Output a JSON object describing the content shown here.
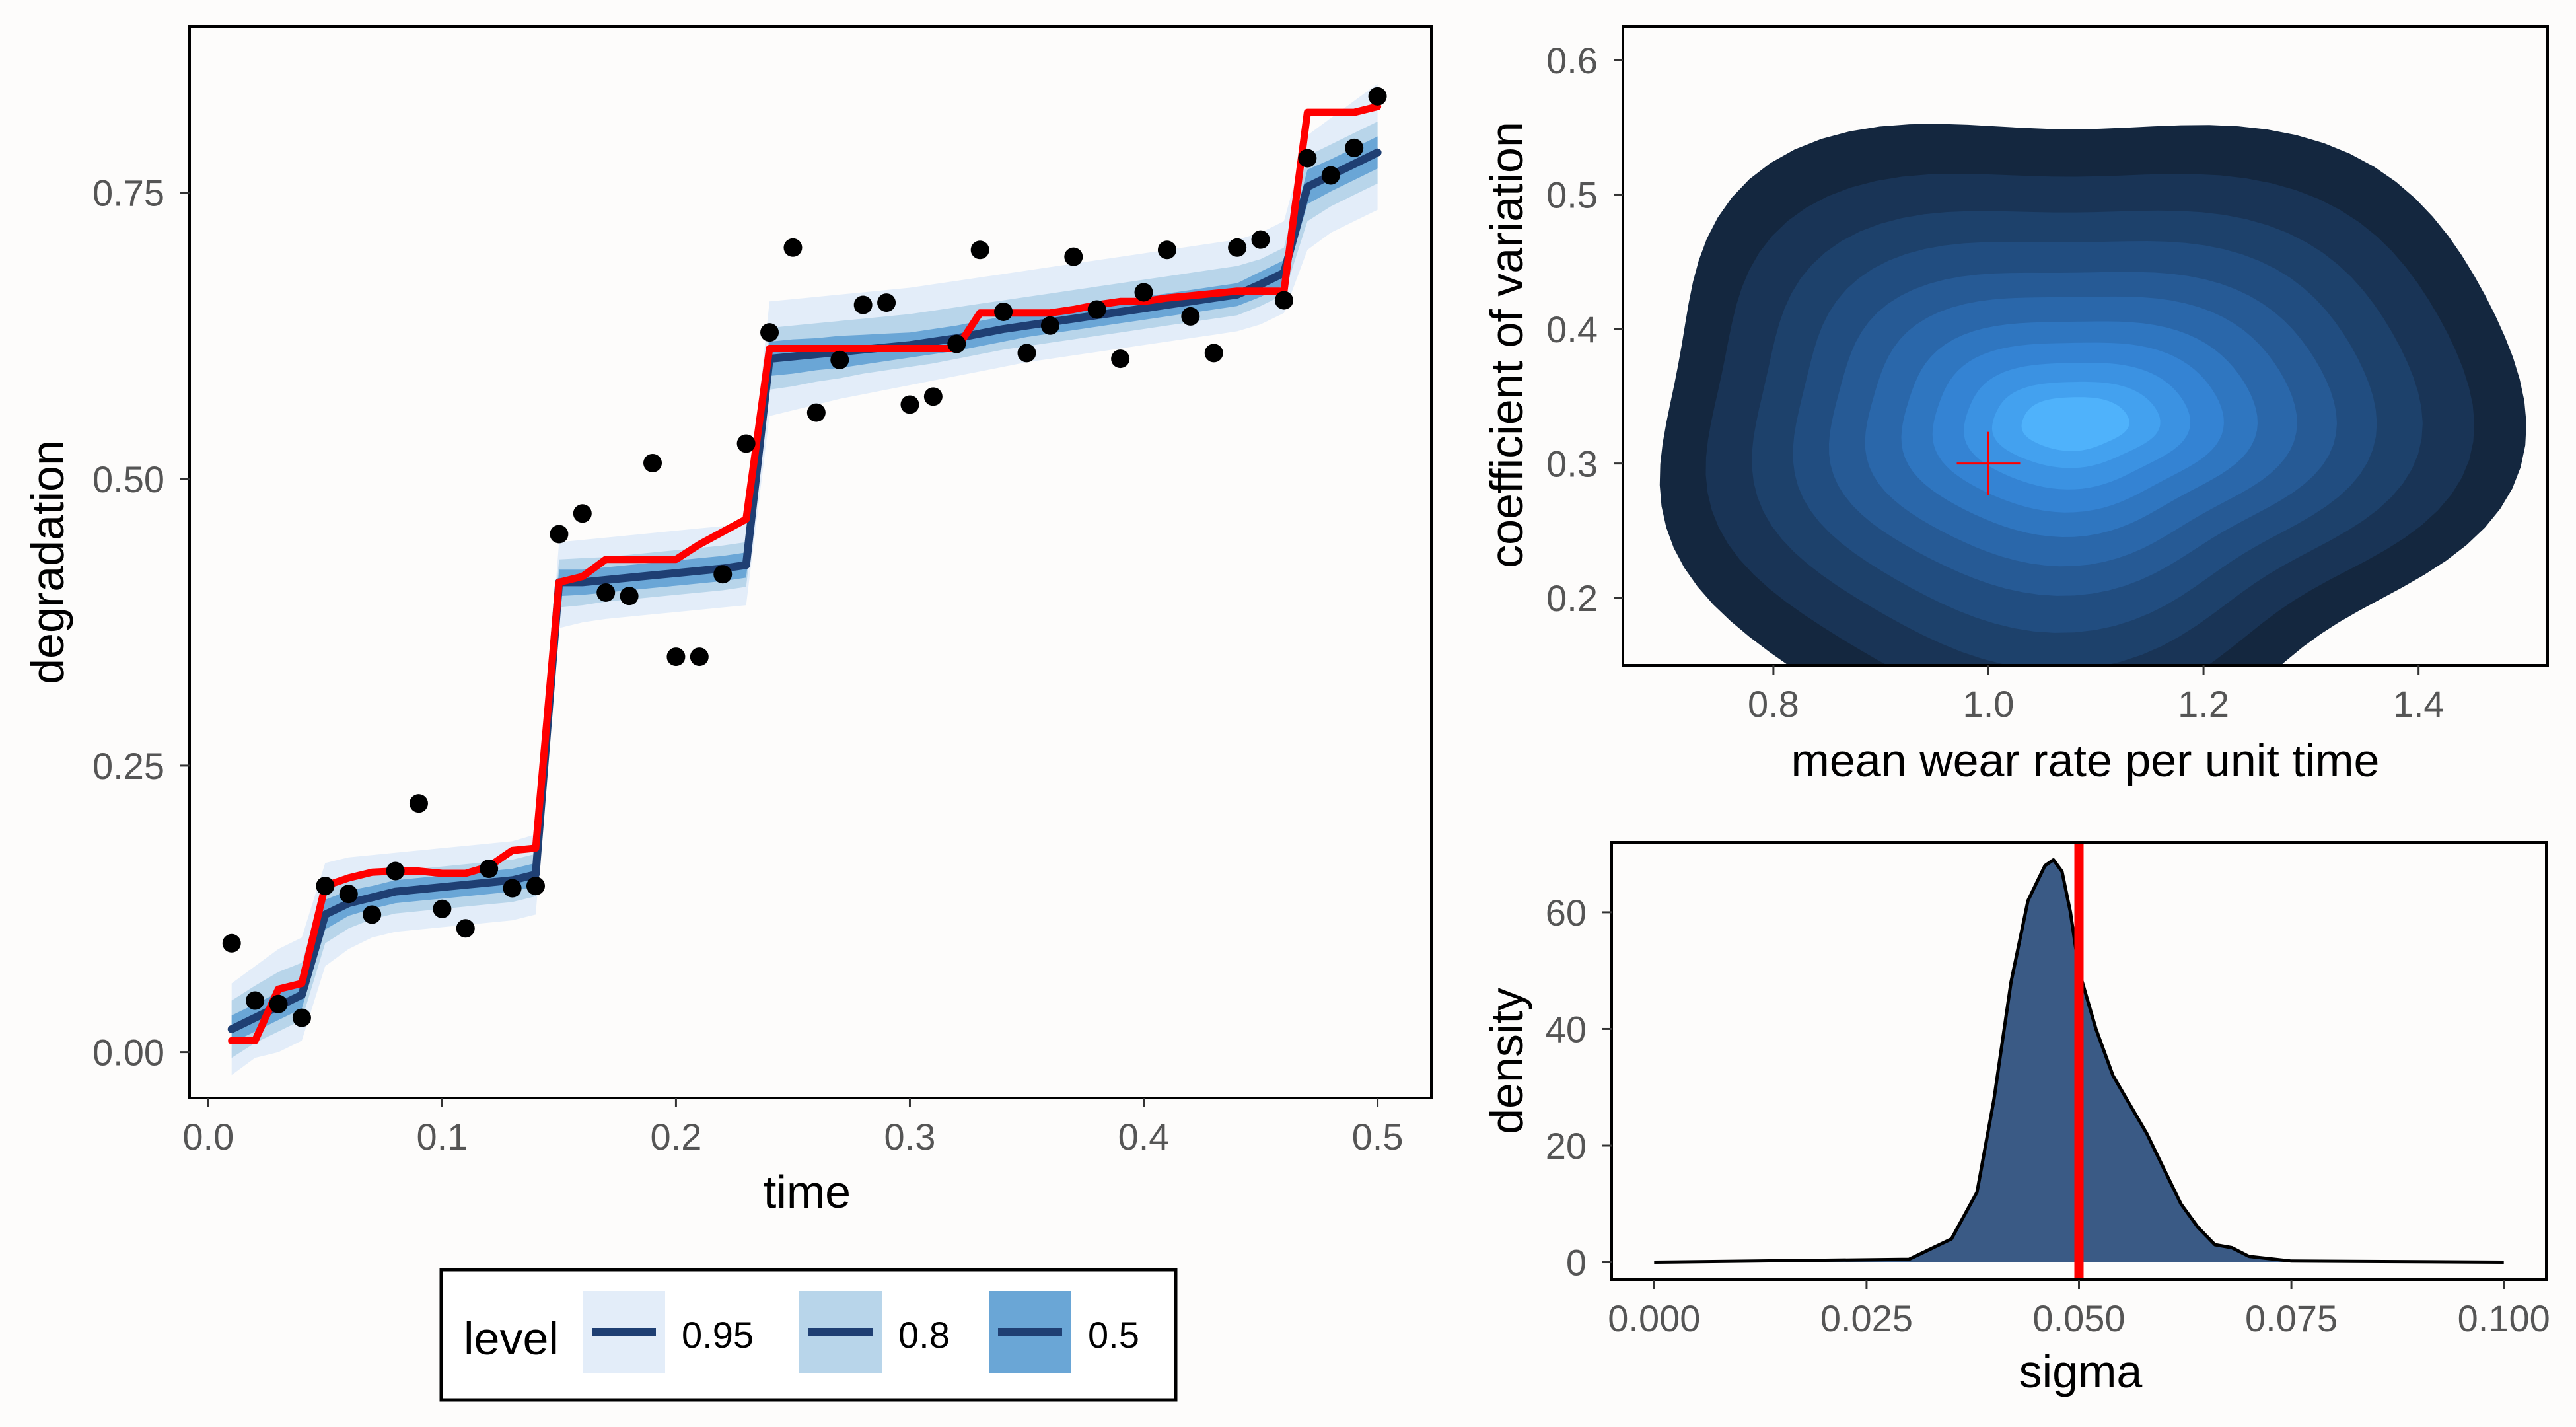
{
  "colors": {
    "background": "#fdfcfb",
    "band_95": "#e3edf9",
    "band_80": "#b8d5ea",
    "band_50": "#6aa6d6",
    "median_line": "#1f3f73",
    "observed_line": "#ff0000",
    "points": "#000000",
    "density_fill": "#3a5a85",
    "true_value_line": "#ff0000",
    "contour_levels": [
      "#14273f",
      "#193456",
      "#1d416b",
      "#214d80",
      "#265a95",
      "#2a67aa",
      "#2f76c0",
      "#3483d3",
      "#3b92e2",
      "#43a1ef",
      "#4fb2fb"
    ]
  },
  "legend": {
    "title": "level",
    "items": [
      {
        "label": "0.95",
        "fill": "#e3edf9"
      },
      {
        "label": "0.8",
        "fill": "#b8d5ea"
      },
      {
        "label": "0.5",
        "fill": "#6aa6d6"
      }
    ]
  },
  "chart_data": [
    {
      "id": "degradation-path",
      "type": "line",
      "title": "",
      "xlabel": "time",
      "ylabel": "degradation",
      "xlim": [
        -0.008,
        0.523
      ],
      "ylim": [
        -0.04,
        0.895
      ],
      "x_ticks": [
        0.0,
        0.1,
        0.2,
        0.3,
        0.4,
        0.5
      ],
      "x_tick_labels": [
        "0.0",
        "0.1",
        "0.2",
        "0.3",
        "0.4",
        "0.5"
      ],
      "y_ticks": [
        0.0,
        0.25,
        0.5,
        0.75
      ],
      "y_tick_labels": [
        "0.00",
        "0.25",
        "0.50",
        "0.75"
      ],
      "grid": false,
      "observed_points": {
        "x": [
          0.01,
          0.02,
          0.03,
          0.04,
          0.05,
          0.06,
          0.07,
          0.08,
          0.09,
          0.1,
          0.11,
          0.12,
          0.13,
          0.14,
          0.15,
          0.16,
          0.17,
          0.18,
          0.19,
          0.2,
          0.21,
          0.22,
          0.23,
          0.24,
          0.25,
          0.26,
          0.27,
          0.28,
          0.29,
          0.3,
          0.31,
          0.32,
          0.33,
          0.34,
          0.35,
          0.36,
          0.37,
          0.38,
          0.39,
          0.4,
          0.41,
          0.42,
          0.43,
          0.44,
          0.45,
          0.46,
          0.47,
          0.48,
          0.49,
          0.5
        ],
        "y": [
          0.095,
          0.045,
          0.042,
          0.03,
          0.145,
          0.138,
          0.12,
          0.158,
          0.217,
          0.125,
          0.108,
          0.16,
          0.143,
          0.145,
          0.452,
          0.47,
          0.401,
          0.398,
          0.514,
          0.345,
          0.345,
          0.417,
          0.531,
          0.628,
          0.702,
          0.558,
          0.604,
          0.652,
          0.654,
          0.565,
          0.572,
          0.618,
          0.7,
          0.646,
          0.61,
          0.634,
          0.694,
          0.648,
          0.605,
          0.663,
          0.7,
          0.642,
          0.61,
          0.702,
          0.709,
          0.656,
          0.78,
          0.765,
          0.789,
          0.834
        ]
      },
      "observed_path": {
        "name": "",
        "x": [
          0.01,
          0.02,
          0.03,
          0.04,
          0.05,
          0.06,
          0.07,
          0.08,
          0.09,
          0.1,
          0.11,
          0.12,
          0.13,
          0.14,
          0.15,
          0.16,
          0.17,
          0.18,
          0.19,
          0.2,
          0.21,
          0.22,
          0.23,
          0.24,
          0.25,
          0.26,
          0.27,
          0.28,
          0.29,
          0.3,
          0.31,
          0.32,
          0.33,
          0.34,
          0.35,
          0.36,
          0.37,
          0.38,
          0.39,
          0.4,
          0.41,
          0.42,
          0.43,
          0.44,
          0.45,
          0.46,
          0.47,
          0.48,
          0.49,
          0.5
        ],
        "y": [
          0.01,
          0.01,
          0.055,
          0.06,
          0.145,
          0.152,
          0.157,
          0.158,
          0.158,
          0.156,
          0.156,
          0.162,
          0.176,
          0.178,
          0.41,
          0.415,
          0.43,
          0.43,
          0.43,
          0.43,
          0.443,
          0.454,
          0.465,
          0.614,
          0.614,
          0.614,
          0.614,
          0.614,
          0.614,
          0.614,
          0.614,
          0.614,
          0.645,
          0.645,
          0.645,
          0.645,
          0.648,
          0.652,
          0.655,
          0.655,
          0.658,
          0.66,
          0.662,
          0.664,
          0.664,
          0.664,
          0.82,
          0.82,
          0.82,
          0.825
        ]
      },
      "median_path": {
        "x": [
          0.01,
          0.02,
          0.03,
          0.04,
          0.05,
          0.06,
          0.07,
          0.08,
          0.09,
          0.1,
          0.11,
          0.12,
          0.13,
          0.14,
          0.15,
          0.16,
          0.17,
          0.18,
          0.19,
          0.2,
          0.21,
          0.22,
          0.23,
          0.24,
          0.25,
          0.26,
          0.27,
          0.28,
          0.29,
          0.3,
          0.31,
          0.32,
          0.33,
          0.34,
          0.35,
          0.36,
          0.37,
          0.38,
          0.39,
          0.4,
          0.41,
          0.42,
          0.43,
          0.44,
          0.45,
          0.46,
          0.47,
          0.48,
          0.49,
          0.5
        ],
        "y": [
          0.02,
          0.03,
          0.04,
          0.05,
          0.12,
          0.13,
          0.135,
          0.14,
          0.142,
          0.144,
          0.146,
          0.148,
          0.15,
          0.155,
          0.41,
          0.41,
          0.412,
          0.414,
          0.416,
          0.418,
          0.42,
          0.422,
          0.425,
          0.605,
          0.607,
          0.609,
          0.611,
          0.613,
          0.615,
          0.617,
          0.62,
          0.623,
          0.627,
          0.631,
          0.634,
          0.637,
          0.64,
          0.643,
          0.646,
          0.649,
          0.652,
          0.655,
          0.658,
          0.661,
          0.67,
          0.68,
          0.755,
          0.765,
          0.775,
          0.785
        ]
      },
      "bands": [
        {
          "level": "0.95",
          "lower": [
            -0.02,
            -0.005,
            0.0,
            0.01,
            0.075,
            0.09,
            0.1,
            0.105,
            0.107,
            0.109,
            0.111,
            0.113,
            0.115,
            0.12,
            0.37,
            0.375,
            0.378,
            0.38,
            0.382,
            0.384,
            0.386,
            0.388,
            0.39,
            0.555,
            0.56,
            0.565,
            0.57,
            0.574,
            0.578,
            0.582,
            0.586,
            0.59,
            0.594,
            0.598,
            0.602,
            0.605,
            0.608,
            0.611,
            0.614,
            0.617,
            0.62,
            0.623,
            0.626,
            0.629,
            0.635,
            0.645,
            0.7,
            0.715,
            0.725,
            0.735
          ],
          "upper": [
            0.06,
            0.075,
            0.09,
            0.1,
            0.165,
            0.17,
            0.172,
            0.174,
            0.176,
            0.178,
            0.18,
            0.182,
            0.184,
            0.19,
            0.445,
            0.447,
            0.449,
            0.451,
            0.453,
            0.455,
            0.457,
            0.459,
            0.462,
            0.655,
            0.657,
            0.659,
            0.661,
            0.663,
            0.665,
            0.667,
            0.67,
            0.673,
            0.676,
            0.679,
            0.682,
            0.685,
            0.688,
            0.691,
            0.694,
            0.697,
            0.7,
            0.703,
            0.706,
            0.709,
            0.715,
            0.725,
            0.8,
            0.815,
            0.83,
            0.845
          ]
        },
        {
          "level": "0.8",
          "lower": [
            -0.005,
            0.008,
            0.018,
            0.028,
            0.095,
            0.108,
            0.116,
            0.121,
            0.123,
            0.125,
            0.127,
            0.129,
            0.131,
            0.136,
            0.388,
            0.39,
            0.393,
            0.395,
            0.397,
            0.399,
            0.401,
            0.403,
            0.406,
            0.578,
            0.581,
            0.585,
            0.588,
            0.592,
            0.595,
            0.598,
            0.601,
            0.605,
            0.609,
            0.613,
            0.616,
            0.619,
            0.622,
            0.625,
            0.628,
            0.631,
            0.634,
            0.637,
            0.64,
            0.643,
            0.651,
            0.661,
            0.725,
            0.738,
            0.748,
            0.758
          ],
          "upper": [
            0.045,
            0.058,
            0.07,
            0.078,
            0.145,
            0.152,
            0.155,
            0.158,
            0.16,
            0.162,
            0.164,
            0.166,
            0.168,
            0.173,
            0.43,
            0.431,
            0.432,
            0.434,
            0.436,
            0.438,
            0.44,
            0.442,
            0.445,
            0.632,
            0.634,
            0.636,
            0.638,
            0.64,
            0.642,
            0.644,
            0.647,
            0.65,
            0.653,
            0.656,
            0.659,
            0.662,
            0.665,
            0.668,
            0.671,
            0.674,
            0.677,
            0.68,
            0.683,
            0.686,
            0.692,
            0.702,
            0.782,
            0.792,
            0.802,
            0.812
          ]
        },
        {
          "level": "0.5",
          "lower": [
            0.008,
            0.018,
            0.028,
            0.038,
            0.107,
            0.119,
            0.125,
            0.13,
            0.132,
            0.134,
            0.136,
            0.138,
            0.14,
            0.145,
            0.398,
            0.399,
            0.401,
            0.403,
            0.405,
            0.407,
            0.409,
            0.411,
            0.414,
            0.59,
            0.592,
            0.595,
            0.597,
            0.6,
            0.603,
            0.606,
            0.609,
            0.612,
            0.616,
            0.62,
            0.624,
            0.627,
            0.63,
            0.633,
            0.636,
            0.639,
            0.642,
            0.645,
            0.648,
            0.651,
            0.659,
            0.669,
            0.74,
            0.751,
            0.761,
            0.771
          ],
          "upper": [
            0.032,
            0.042,
            0.052,
            0.062,
            0.133,
            0.141,
            0.145,
            0.15,
            0.152,
            0.154,
            0.156,
            0.158,
            0.16,
            0.165,
            0.421,
            0.421,
            0.423,
            0.425,
            0.427,
            0.429,
            0.431,
            0.433,
            0.436,
            0.62,
            0.622,
            0.623,
            0.625,
            0.626,
            0.627,
            0.628,
            0.631,
            0.634,
            0.638,
            0.642,
            0.644,
            0.647,
            0.65,
            0.653,
            0.656,
            0.659,
            0.662,
            0.665,
            0.668,
            0.671,
            0.681,
            0.691,
            0.77,
            0.779,
            0.789,
            0.799
          ]
        }
      ]
    },
    {
      "id": "parameter-joint-density",
      "type": "heatmap",
      "subtype": "filled-2d-density-contour",
      "title": "",
      "xlabel": "mean wear rate per unit time",
      "ylabel": "coefficient of variation",
      "xlim": [
        0.66,
        1.52
      ],
      "ylim": [
        0.15,
        0.625
      ],
      "x_ticks": [
        0.8,
        1.0,
        1.2,
        1.4
      ],
      "x_tick_labels": [
        "0.8",
        "1.0",
        "1.2",
        "1.4"
      ],
      "y_ticks": [
        0.2,
        0.3,
        0.4,
        0.5,
        0.6
      ],
      "y_tick_labels": [
        "0.2",
        "0.3",
        "0.4",
        "0.5",
        "0.6"
      ],
      "grid": false,
      "density_center": [
        1.08,
        0.33
      ],
      "true_value_marker": {
        "x": 1.0,
        "y": 0.3,
        "symbol": "cross",
        "color": "#ff0000"
      },
      "contour_levels": [
        {
          "rank": 1,
          "half_width_x": 0.4,
          "half_width_y": 0.24
        },
        {
          "rank": 2,
          "half_width_x": 0.355,
          "half_width_y": 0.2
        },
        {
          "rank": 3,
          "half_width_x": 0.31,
          "half_width_y": 0.17
        },
        {
          "rank": 4,
          "half_width_x": 0.27,
          "half_width_y": 0.145
        },
        {
          "rank": 5,
          "half_width_x": 0.235,
          "half_width_y": 0.12
        },
        {
          "rank": 6,
          "half_width_x": 0.2,
          "half_width_y": 0.1
        },
        {
          "rank": 7,
          "half_width_x": 0.165,
          "half_width_y": 0.08
        },
        {
          "rank": 8,
          "half_width_x": 0.135,
          "half_width_y": 0.063
        },
        {
          "rank": 9,
          "half_width_x": 0.105,
          "half_width_y": 0.047
        },
        {
          "rank": 10,
          "half_width_x": 0.078,
          "half_width_y": 0.032
        },
        {
          "rank": 11,
          "half_width_x": 0.05,
          "half_width_y": 0.02
        }
      ]
    },
    {
      "id": "sigma-density",
      "type": "area",
      "title": "",
      "xlabel": "sigma",
      "ylabel": "density",
      "xlim": [
        -0.005,
        0.105
      ],
      "ylim": [
        -3,
        72
      ],
      "x_ticks": [
        0.0,
        0.025,
        0.05,
        0.075,
        0.1
      ],
      "x_tick_labels": [
        "0.000",
        "0.025",
        "0.050",
        "0.075",
        "0.100"
      ],
      "y_ticks": [
        0,
        20,
        40,
        60
      ],
      "y_tick_labels": [
        "0",
        "20",
        "40",
        "60"
      ],
      "grid": false,
      "true_value_line": {
        "x": 0.05,
        "color": "#ff0000"
      },
      "x": [
        0.0,
        0.03,
        0.035,
        0.038,
        0.04,
        0.042,
        0.044,
        0.046,
        0.047,
        0.048,
        0.049,
        0.05,
        0.052,
        0.054,
        0.056,
        0.058,
        0.06,
        0.062,
        0.064,
        0.066,
        0.068,
        0.07,
        0.075,
        0.1
      ],
      "y": [
        0.0,
        0.5,
        4.0,
        12.0,
        28.0,
        48.0,
        62.0,
        68.0,
        69.0,
        67.0,
        60.0,
        50.0,
        40.0,
        32.0,
        27.0,
        22.0,
        16.0,
        10.0,
        6.0,
        3.0,
        2.5,
        1.0,
        0.2,
        0.0
      ]
    }
  ]
}
